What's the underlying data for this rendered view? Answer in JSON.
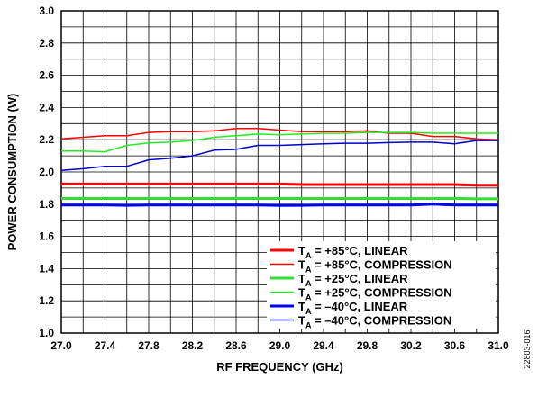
{
  "chart_data": {
    "type": "line",
    "title": "",
    "xlabel": "RF FREQUENCY (GHz)",
    "ylabel": "POWER CONSUMPTION (W)",
    "xlim": [
      27.0,
      31.0
    ],
    "ylim": [
      1.0,
      3.0
    ],
    "xticks": [
      "27.0",
      "27.4",
      "27.8",
      "28.2",
      "28.6",
      "29.0",
      "29.4",
      "29.8",
      "30.2",
      "30.6",
      "31.0"
    ],
    "yticks": [
      "1.0",
      "1.2",
      "1.4",
      "1.6",
      "1.8",
      "2.0",
      "2.2",
      "2.4",
      "2.6",
      "2.8",
      "3.0"
    ],
    "grid": true,
    "legend_position": "bottom-right",
    "x": [
      27.0,
      27.2,
      27.4,
      27.6,
      27.8,
      28.0,
      28.2,
      28.4,
      28.6,
      28.8,
      29.0,
      29.2,
      29.4,
      29.6,
      29.8,
      30.0,
      30.2,
      30.4,
      30.6,
      30.8,
      31.0
    ],
    "series": [
      {
        "name_prefix": "T",
        "name_sub": "A",
        "name_rest": " = +85°C, LINEAR",
        "color": "#ff0000",
        "width": 3,
        "values": [
          1.925,
          1.925,
          1.925,
          1.925,
          1.925,
          1.925,
          1.925,
          1.925,
          1.925,
          1.925,
          1.925,
          1.922,
          1.922,
          1.922,
          1.922,
          1.922,
          1.922,
          1.922,
          1.922,
          1.918,
          1.918
        ]
      },
      {
        "name_prefix": "T",
        "name_sub": "A",
        "name_rest": " = +85°C, COMPRESSION",
        "color": "#ff0000",
        "width": 1.5,
        "values": [
          2.205,
          2.215,
          2.225,
          2.225,
          2.245,
          2.25,
          2.25,
          2.255,
          2.27,
          2.27,
          2.26,
          2.25,
          2.25,
          2.25,
          2.255,
          2.24,
          2.24,
          2.22,
          2.22,
          2.205,
          2.2
        ]
      },
      {
        "name_prefix": "T",
        "name_sub": "A",
        "name_rest": " = +25°C, LINEAR",
        "color": "#33dd33",
        "width": 3,
        "values": [
          1.835,
          1.835,
          1.835,
          1.835,
          1.835,
          1.835,
          1.835,
          1.835,
          1.835,
          1.835,
          1.835,
          1.835,
          1.835,
          1.835,
          1.835,
          1.835,
          1.835,
          1.835,
          1.835,
          1.833,
          1.833
        ]
      },
      {
        "name_prefix": "T",
        "name_sub": "A",
        "name_rest": " = +25°C, COMPRESSION",
        "color": "#22ee22",
        "width": 1.5,
        "values": [
          2.13,
          2.13,
          2.125,
          2.165,
          2.18,
          2.185,
          2.195,
          2.215,
          2.225,
          2.235,
          2.23,
          2.235,
          2.24,
          2.24,
          2.245,
          2.245,
          2.245,
          2.24,
          2.24,
          2.24,
          2.24
        ]
      },
      {
        "name_prefix": "T",
        "name_sub": "A",
        "name_rest": " = –40°C, LINEAR",
        "color": "#0000ff",
        "width": 3,
        "values": [
          1.795,
          1.795,
          1.795,
          1.793,
          1.795,
          1.795,
          1.795,
          1.795,
          1.795,
          1.795,
          1.792,
          1.793,
          1.795,
          1.795,
          1.795,
          1.795,
          1.795,
          1.8,
          1.795,
          1.795,
          1.795
        ]
      },
      {
        "name_prefix": "T",
        "name_sub": "A",
        "name_rest": " = –40°C, COMPRESSION",
        "color": "#0000cc",
        "width": 1.5,
        "values": [
          2.01,
          2.02,
          2.035,
          2.035,
          2.075,
          2.085,
          2.1,
          2.135,
          2.14,
          2.165,
          2.165,
          2.17,
          2.175,
          2.178,
          2.178,
          2.182,
          2.185,
          2.185,
          2.175,
          2.195,
          2.195
        ]
      }
    ]
  },
  "figure_id": "22803-016"
}
